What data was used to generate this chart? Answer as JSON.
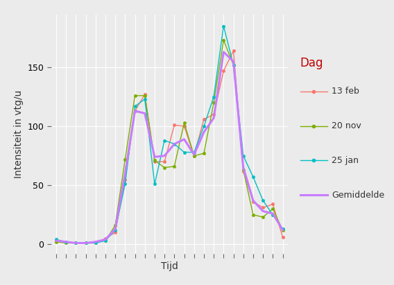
{
  "title": "",
  "xlabel": "Tijd",
  "ylabel": "Intensiteit in vtg/u",
  "background_color": "#EBEBEB",
  "plot_bg_color": "#EBEBEB",
  "outer_bg_color": "#EBEBEB",
  "grid_color": "#FFFFFF",
  "hours": [
    0,
    1,
    2,
    3,
    4,
    5,
    6,
    7,
    8,
    9,
    10,
    11,
    12,
    13,
    14,
    15,
    16,
    17,
    18,
    19,
    20,
    21,
    22,
    23
  ],
  "series_order": [
    "13 feb",
    "20 nov",
    "25 jan",
    "Gemiddelde"
  ],
  "series": {
    "13 feb": {
      "color": "#F8766D",
      "marker": "o",
      "linewidth": 1.0,
      "markersize": 3.0,
      "values": [
        3,
        2,
        1,
        1,
        1,
        5,
        10,
        55,
        113,
        127,
        70,
        70,
        101,
        100,
        75,
        106,
        110,
        147,
        164,
        62,
        36,
        31,
        34,
        6
      ]
    },
    "20 nov": {
      "color": "#7CAE00",
      "marker": "o",
      "linewidth": 1.0,
      "markersize": 3.0,
      "values": [
        2,
        1,
        1,
        1,
        2,
        3,
        16,
        72,
        126,
        126,
        71,
        65,
        66,
        103,
        75,
        77,
        120,
        173,
        152,
        63,
        25,
        23,
        30,
        12
      ]
    },
    "25 jan": {
      "color": "#00BFC4",
      "marker": "o",
      "linewidth": 1.0,
      "markersize": 3.0,
      "values": [
        4,
        2,
        1,
        1,
        1,
        3,
        12,
        51,
        117,
        123,
        51,
        88,
        85,
        78,
        78,
        100,
        125,
        185,
        152,
        75,
        57,
        37,
        25,
        13
      ]
    },
    "Gemiddelde": {
      "color": "#C77CFF",
      "marker": null,
      "linewidth": 2.2,
      "markersize": 0,
      "values": [
        3,
        2,
        1,
        1,
        2,
        4,
        13,
        60,
        113,
        111,
        74,
        75,
        85,
        89,
        76,
        95,
        107,
        163,
        155,
        65,
        37,
        28,
        26,
        12
      ]
    }
  },
  "ylim": [
    -8,
    195
  ],
  "yticks": [
    0,
    50,
    100,
    150
  ],
  "legend_title": "Dag",
  "legend_title_color": "#C00000",
  "legend_fontsize": 9,
  "legend_title_fontsize": 12,
  "axis_label_fontsize": 10,
  "tick_fontsize": 9
}
